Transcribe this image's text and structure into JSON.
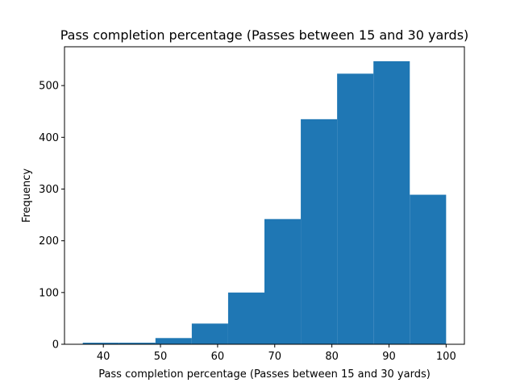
{
  "chart_data": {
    "type": "bar",
    "title": "Pass completion percentage (Passes between 15 and 30 yards)",
    "xlabel": "Pass completion percentage (Passes between 15 and 30 yards)",
    "ylabel": "Frequency",
    "bin_edges": [
      36.4,
      42.76,
      49.12,
      55.48,
      61.84,
      68.2,
      74.56,
      80.92,
      87.28,
      93.64,
      100.0
    ],
    "values": [
      3,
      3,
      12,
      40,
      100,
      242,
      435,
      523,
      547,
      289
    ],
    "xlim": [
      33.2,
      103.2
    ],
    "ylim": [
      0,
      575
    ],
    "xticks": [
      40,
      50,
      60,
      70,
      80,
      90,
      100
    ],
    "yticks": [
      0,
      100,
      200,
      300,
      400,
      500
    ],
    "bar_color": "#1f77b4",
    "grid": false,
    "legend": "none"
  }
}
